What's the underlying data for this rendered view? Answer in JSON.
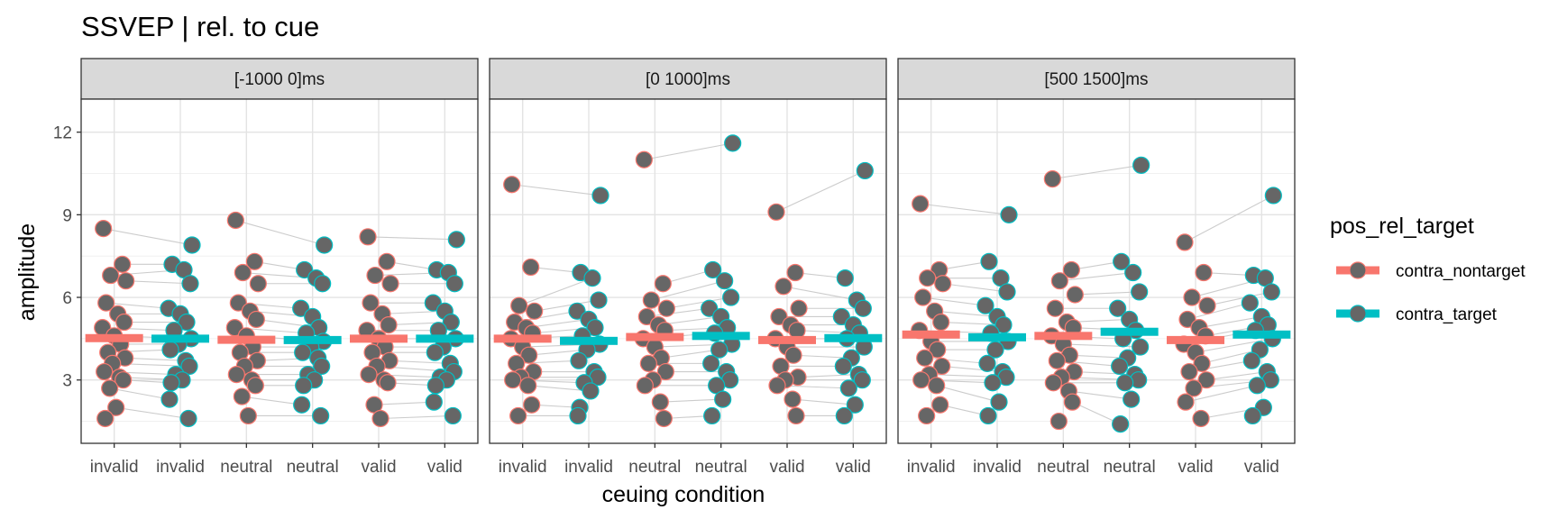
{
  "chart_data": {
    "type": "scatter",
    "title": "SSVEP | rel. to cue",
    "xlabel": "ceuing condition",
    "ylabel": "amplitude",
    "ylim": [
      0.7,
      13.2
    ],
    "yticks": [
      3,
      6,
      9,
      12
    ],
    "categories": [
      "invalid",
      "invalid",
      "neutral",
      "neutral",
      "valid",
      "valid"
    ],
    "category_series": [
      "contra_nontarget",
      "contra_target",
      "contra_nontarget",
      "contra_target",
      "contra_nontarget",
      "contra_target"
    ],
    "legend": {
      "title": "pos_rel_target",
      "position": "right",
      "items": [
        {
          "name": "contra_nontarget",
          "color": "#F8766D"
        },
        {
          "name": "contra_target",
          "color": "#00BFC4"
        }
      ]
    },
    "point_fill": "#666666",
    "grid": true,
    "panels": [
      {
        "label": "[-1000 0]ms",
        "means": [
          4.52,
          4.5,
          4.46,
          4.45,
          4.5,
          4.5
        ],
        "values": [
          [
            8.5,
            7.2,
            6.8,
            6.6,
            5.8,
            5.4,
            5.1,
            4.9,
            4.6,
            4.3,
            4.0,
            3.8,
            3.6,
            3.3,
            3.1,
            3.0,
            2.7,
            2.0,
            1.6
          ],
          [
            7.9,
            7.2,
            7.0,
            6.5,
            5.6,
            5.4,
            5.1,
            4.8,
            4.5,
            4.3,
            4.1,
            3.7,
            3.5,
            3.2,
            3.0,
            2.9,
            2.3,
            1.6
          ],
          [
            8.8,
            7.3,
            6.9,
            6.5,
            5.8,
            5.5,
            5.2,
            4.9,
            4.6,
            4.2,
            4.0,
            3.7,
            3.5,
            3.2,
            3.0,
            2.8,
            2.4,
            1.7
          ],
          [
            7.9,
            7.0,
            6.7,
            6.5,
            5.6,
            5.3,
            4.9,
            4.7,
            4.4,
            4.2,
            4.0,
            3.8,
            3.5,
            3.2,
            3.0,
            2.8,
            2.1,
            1.7
          ],
          [
            8.2,
            7.3,
            6.8,
            6.5,
            5.8,
            5.4,
            5.0,
            4.8,
            4.5,
            4.2,
            4.0,
            3.7,
            3.5,
            3.2,
            3.0,
            2.9,
            2.1,
            1.6
          ],
          [
            8.1,
            7.0,
            6.9,
            6.5,
            5.8,
            5.5,
            5.1,
            4.8,
            4.5,
            4.2,
            4.0,
            3.6,
            3.3,
            3.1,
            3.0,
            2.8,
            2.2,
            1.7
          ]
        ]
      },
      {
        "label": "[0 1000]ms",
        "means": [
          4.5,
          4.42,
          4.56,
          4.6,
          4.45,
          4.52
        ],
        "values": [
          [
            10.1,
            7.1,
            5.7,
            5.5,
            5.1,
            4.9,
            4.7,
            4.5,
            4.2,
            3.9,
            3.6,
            3.3,
            3.1,
            3.0,
            2.8,
            2.1,
            1.7
          ],
          [
            9.7,
            6.9,
            6.7,
            5.9,
            5.5,
            5.2,
            4.9,
            4.6,
            4.3,
            4.1,
            3.7,
            3.3,
            3.1,
            2.9,
            2.6,
            2.0,
            1.7
          ],
          [
            11.0,
            6.5,
            5.9,
            5.6,
            5.3,
            5.0,
            4.8,
            4.5,
            4.2,
            3.8,
            3.6,
            3.3,
            3.0,
            2.8,
            2.2,
            1.6
          ],
          [
            11.6,
            7.0,
            6.6,
            6.0,
            5.6,
            5.3,
            4.9,
            4.7,
            4.3,
            4.1,
            3.6,
            3.3,
            3.0,
            2.8,
            2.3,
            1.7
          ],
          [
            9.1,
            6.9,
            6.4,
            5.6,
            5.3,
            5.0,
            4.8,
            4.5,
            4.2,
            3.9,
            3.5,
            3.1,
            3.0,
            2.8,
            2.3,
            1.7
          ],
          [
            10.6,
            6.7,
            5.9,
            5.6,
            5.3,
            5.0,
            4.7,
            4.5,
            4.2,
            3.8,
            3.5,
            3.2,
            3.0,
            2.7,
            2.1,
            1.7
          ]
        ]
      },
      {
        "label": "[500 1500]ms",
        "means": [
          4.65,
          4.55,
          4.6,
          4.75,
          4.45,
          4.65
        ],
        "values": [
          [
            9.4,
            7.0,
            6.7,
            6.5,
            6.0,
            5.5,
            5.1,
            4.8,
            4.4,
            4.1,
            3.8,
            3.5,
            3.2,
            3.0,
            2.8,
            2.1,
            1.7
          ],
          [
            9.0,
            7.3,
            6.7,
            6.2,
            5.7,
            5.3,
            5.0,
            4.7,
            4.4,
            4.1,
            3.6,
            3.3,
            3.1,
            2.9,
            2.2,
            1.7
          ],
          [
            10.3,
            7.0,
            6.6,
            6.1,
            5.6,
            5.1,
            4.9,
            4.6,
            4.3,
            3.9,
            3.7,
            3.3,
            3.1,
            2.9,
            2.6,
            2.2,
            1.5
          ],
          [
            10.8,
            7.3,
            6.9,
            6.2,
            5.6,
            5.2,
            4.8,
            4.5,
            4.2,
            3.8,
            3.5,
            3.2,
            3.0,
            2.9,
            2.3,
            1.4
          ],
          [
            8.0,
            6.9,
            6.0,
            5.7,
            5.2,
            4.9,
            4.6,
            4.3,
            4.0,
            3.6,
            3.3,
            3.0,
            2.7,
            2.2,
            1.6
          ],
          [
            9.7,
            6.8,
            6.7,
            6.2,
            5.8,
            5.3,
            5.0,
            4.8,
            4.5,
            4.1,
            3.7,
            3.3,
            3.0,
            2.8,
            2.0,
            1.7
          ]
        ]
      }
    ]
  }
}
